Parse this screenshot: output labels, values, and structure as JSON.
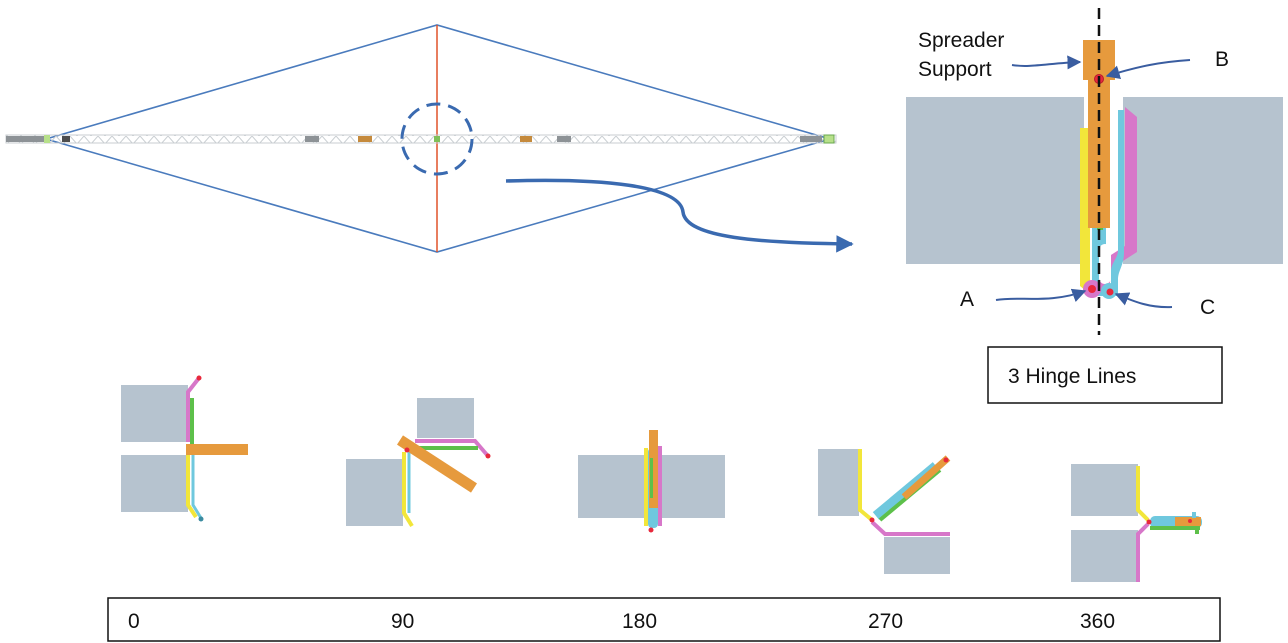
{
  "labels": {
    "spreader_line1": "Spreader",
    "spreader_line2": "Support",
    "point_a": "A",
    "point_b": "B",
    "point_c": "C",
    "hinge_box": "3 Hinge Lines"
  },
  "angle_axis": {
    "ticks": [
      "0",
      "90",
      "180",
      "270",
      "360"
    ]
  },
  "colors": {
    "cable": "#4a7bbd",
    "mast": "#e0542a",
    "panel": "#b6c3cf",
    "yellow_hinge": "#f2e63a",
    "cyan_hinge": "#6fc8de",
    "magenta_hinge": "#d777c9",
    "spreader_arm": "#e69a3d",
    "green_hinge": "#5dc04a",
    "pin": "#e8283c"
  }
}
